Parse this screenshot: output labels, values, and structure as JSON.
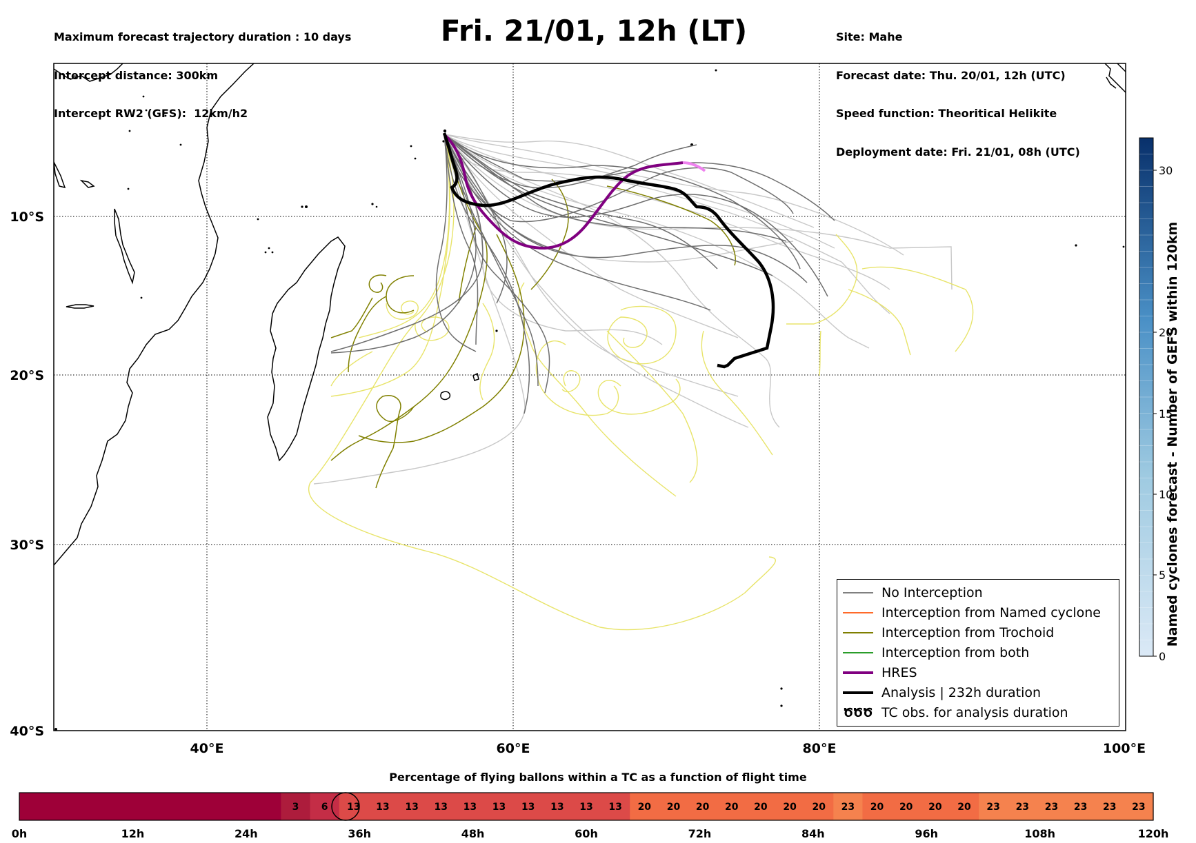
{
  "header": {
    "left_lines": [
      "Maximum forecast trajectory duration : 10 days",
      "Intercept distance: 300km",
      "Intercept RW2 (GFS):  12km/h2"
    ],
    "title": "Fri. 21/01, 12h (LT)",
    "right_lines": [
      "Site: Mahe",
      "Forecast date: Thu. 20/01, 12h (UTC)",
      "Speed function: Theoritical Helikite",
      "Deployment date: Fri. 21/01, 08h (UTC)"
    ]
  },
  "map": {
    "lon_labels": [
      "40°E",
      "60°E",
      "80°E",
      "100°E"
    ],
    "lat_labels": [
      "10°S",
      "20°S",
      "30°S",
      "40°S"
    ]
  },
  "legend": [
    {
      "label": "No Interception",
      "color": "#808080",
      "style": "thin"
    },
    {
      "label": "Interception from Named cyclone",
      "color": "#ff6a2a",
      "style": "thin"
    },
    {
      "label": "Interception from Trochoid",
      "color": "#7f7f00",
      "style": "thin"
    },
    {
      "label": "Interception from both",
      "color": "#2a9d2a",
      "style": "thin"
    },
    {
      "label": "HRES",
      "color": "#800080",
      "style": "thick"
    },
    {
      "label": "Analysis | 232h duration",
      "color": "#000000",
      "style": "thick"
    },
    {
      "label": "TC obs. for analysis duration",
      "color": "#000000",
      "style": "symbol",
      "symbol": "ԾԾԾ"
    }
  ],
  "colorbar": {
    "label": "Named cyclones forecast - Number of GEFS within 120km",
    "ticks": [
      "0",
      "5",
      "10",
      "15",
      "20",
      "30"
    ],
    "color_low": "#dbe9f6",
    "color_high": "#08306b"
  },
  "time_bar": {
    "title": "Percentage of flying ballons within a TC as a function of flight time",
    "hour_labels": [
      "0h",
      "12h",
      "24h",
      "36h",
      "48h",
      "60h",
      "72h",
      "84h",
      "96h",
      "108h",
      "120h"
    ],
    "cells": [
      "",
      "",
      "",
      "",
      "",
      "",
      "",
      "",
      "",
      "3",
      "6",
      "13",
      "13",
      "13",
      "13",
      "13",
      "13",
      "13",
      "13",
      "13",
      "13",
      "20",
      "20",
      "20",
      "20",
      "20",
      "20",
      "20",
      "23",
      "20",
      "20",
      "20",
      "20",
      "23",
      "23",
      "23",
      "23",
      "23",
      "23"
    ],
    "circled_cell_value": "13",
    "colors": {
      "0": "#9e0038",
      "3": "#ad1c3c",
      "6": "#c42d46",
      "13": "#dc4a48",
      "20": "#f26c44",
      "23": "#f5824e"
    }
  }
}
